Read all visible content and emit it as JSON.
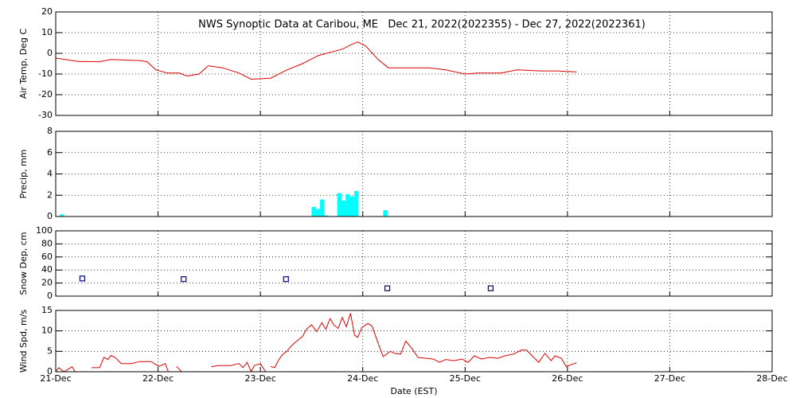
{
  "chart_data": [
    {
      "type": "line",
      "title": "NWS Synoptic Data at Caribou, ME   Dec 21, 2022(2022355) - Dec 27, 2022(2022361)",
      "ylabel": "Air Temp, Deg C",
      "color": "#dd0000",
      "x": [
        0,
        0.23,
        0.43,
        0.54,
        0.82,
        0.89,
        0.98,
        1.09,
        1.21,
        1.28,
        1.4,
        1.49,
        1.63,
        1.79,
        1.91,
        2.1,
        2.26,
        2.41,
        2.57,
        2.68,
        2.8,
        2.88,
        2.95,
        3.03,
        3.15,
        3.25,
        3.42,
        3.65,
        3.81,
        4.0,
        4.12,
        4.35,
        4.51,
        4.74,
        4.9,
        5.09
      ],
      "values": [
        -2.3,
        -4,
        -4,
        -3,
        -3.5,
        -4,
        -8,
        -9.5,
        -9.5,
        -11,
        -10,
        -6,
        -7,
        -9.5,
        -12.5,
        -12,
        -8,
        -5,
        -1,
        0.5,
        2,
        4,
        5.5,
        3.5,
        -3,
        -7,
        -7,
        -7,
        -8,
        -10,
        -9.5,
        -9.5,
        -8,
        -8.5,
        -8.5,
        -9
      ],
      "ylim": [
        -30,
        20
      ],
      "yticks": [
        -30,
        -20,
        -10,
        0,
        10,
        20
      ],
      "grid": true
    },
    {
      "type": "bar",
      "ylabel": "Precip, mm",
      "color": "#00ffff",
      "x": [
        0.04,
        2.5,
        2.542,
        2.583,
        2.625,
        2.75,
        2.792,
        2.833,
        2.875,
        2.917,
        3.2
      ],
      "values": [
        0.2,
        0.9,
        0.7,
        1.6,
        0.1,
        2.2,
        1.5,
        2.1,
        1.9,
        2.4,
        0.6
      ],
      "ylim": [
        0,
        8
      ],
      "yticks": [
        0,
        2,
        4,
        6,
        8
      ],
      "grid": true
    },
    {
      "type": "scatter",
      "ylabel": "Snow Dep, cm",
      "color": "#000080",
      "x": [
        0.26,
        1.25,
        2.25,
        3.24,
        4.25
      ],
      "values": [
        27,
        26,
        26,
        12,
        12
      ],
      "ylim": [
        0,
        100
      ],
      "yticks": [
        0,
        20,
        40,
        60,
        80,
        100
      ],
      "grid": true
    },
    {
      "type": "line",
      "ylabel": "Wind Spd, m/s",
      "color": "#dd0000",
      "xlabel": "Date (EST)",
      "x": [
        0,
        0.03,
        0.08,
        0.16,
        0.19,
        0.25,
        0.35,
        0.43,
        0.47,
        0.51,
        0.54,
        0.58,
        0.64,
        0.74,
        0.82,
        0.93,
        1.01,
        1.07,
        1.1,
        1.12,
        1.18,
        1.23,
        1.5,
        1.52,
        1.59,
        1.71,
        1.79,
        1.83,
        1.87,
        1.91,
        1.94,
        2.0,
        2.05,
        2.07,
        2.1,
        2.14,
        2.18,
        2.22,
        2.26,
        2.29,
        2.33,
        2.41,
        2.45,
        2.5,
        2.55,
        2.6,
        2.64,
        2.68,
        2.72,
        2.76,
        2.8,
        2.84,
        2.88,
        2.92,
        2.95,
        2.99,
        3.05,
        3.09,
        3.15,
        3.2,
        3.27,
        3.31,
        3.37,
        3.42,
        3.48,
        3.54,
        3.62,
        3.69,
        3.75,
        3.81,
        3.89,
        3.97,
        4.03,
        4.09,
        4.16,
        4.24,
        4.32,
        4.39,
        4.47,
        4.55,
        4.6,
        4.67,
        4.72,
        4.78,
        4.84,
        4.88,
        4.94,
        4.99,
        5.04,
        5.09
      ],
      "values": [
        0,
        1,
        0,
        1.2,
        0,
        null,
        1,
        1,
        3.5,
        3,
        4,
        3.5,
        2,
        2,
        2.5,
        2.5,
        1.3,
        2,
        0,
        null,
        1.3,
        0,
        null,
        1.2,
        1.5,
        1.5,
        2,
        1,
        2.3,
        0,
        1.5,
        2,
        0,
        null,
        1.3,
        1,
        3,
        4.3,
        5,
        6,
        7,
        8.6,
        10.4,
        11.5,
        9.8,
        12,
        10.4,
        13,
        11.4,
        10.6,
        13.3,
        11,
        14.3,
        9,
        8.4,
        10.8,
        11.8,
        11.2,
        7,
        3.7,
        5,
        4.5,
        4.3,
        7.5,
        5.7,
        3.5,
        3.3,
        3.1,
        2.3,
        3,
        2.7,
        3.1,
        2.3,
        3.9,
        3.1,
        3.5,
        3.3,
        3.9,
        4.3,
        5.3,
        5.3,
        3.5,
        2.3,
        4.5,
        2.7,
        3.9,
        3.3,
        1.2,
        1.8,
        2.2
      ],
      "ylim": [
        0,
        15
      ],
      "yticks": [
        0,
        5,
        10,
        15
      ],
      "grid": true,
      "xlim": [
        0,
        7
      ],
      "xticks": [
        {
          "value": 0,
          "label": "21-Dec"
        },
        {
          "value": 1,
          "label": "22-Dec"
        },
        {
          "value": 2,
          "label": "23-Dec"
        },
        {
          "value": 3,
          "label": "24-Dec"
        },
        {
          "value": 4,
          "label": "25-Dec"
        },
        {
          "value": 5,
          "label": "26-Dec"
        },
        {
          "value": 6,
          "label": "27-Dec"
        },
        {
          "value": 7,
          "label": "28-Dec"
        }
      ]
    }
  ]
}
